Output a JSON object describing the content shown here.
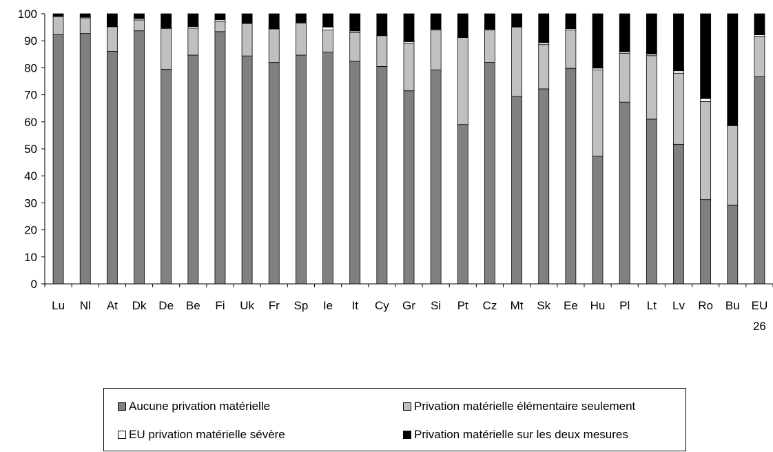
{
  "chart_data": {
    "type": "bar",
    "stacked": true,
    "categories": [
      "Lu",
      "Nl",
      "At",
      "Dk",
      "De",
      "Be",
      "Fi",
      "Uk",
      "Fr",
      "Sp",
      "Ie",
      "It",
      "Cy",
      "Gr",
      "Si",
      "Pt",
      "Cz",
      "Mt",
      "Sk",
      "Ee",
      "Hu",
      "Pl",
      "Lt",
      "Lv",
      "Ro",
      "Bu",
      "EU 26"
    ],
    "series": [
      {
        "name": "Aucune privation matérielle",
        "color": "#808080",
        "values": [
          92.3,
          92.7,
          86.1,
          93.7,
          79.5,
          84.7,
          93.4,
          84.4,
          82.0,
          84.7,
          85.8,
          82.4,
          80.5,
          71.5,
          79.2,
          59.0,
          82.0,
          69.4,
          72.2,
          79.8,
          47.3,
          67.3,
          61.0,
          51.7,
          31.2,
          29.1,
          76.7
        ]
      },
      {
        "name": "Privation matérielle élémentaire seulement",
        "color": "#c0c0c0",
        "values": [
          6.7,
          5.8,
          9.1,
          4.0,
          15.0,
          10.0,
          3.8,
          12.0,
          12.4,
          11.8,
          8.2,
          10.6,
          11.4,
          17.6,
          14.8,
          32.2,
          12.0,
          25.7,
          16.4,
          14.2,
          31.9,
          18.0,
          23.5,
          26.3,
          36.3,
          29.5,
          15.0
        ]
      },
      {
        "name": "EU privation matérielle sévère",
        "color": "#ffffff",
        "values": [
          0.2,
          0.3,
          0.2,
          0.5,
          0.3,
          0.6,
          0.6,
          0.2,
          0.1,
          0.3,
          1.1,
          0.6,
          0.2,
          0.6,
          0.3,
          0.0,
          0.3,
          0.2,
          0.7,
          0.5,
          0.7,
          0.6,
          0.6,
          0.9,
          1.1,
          0.2,
          0.5
        ]
      },
      {
        "name": "Privation matérielle sur les deux mesures",
        "color": "#000000",
        "values": [
          0.8,
          1.2,
          4.6,
          1.8,
          5.2,
          4.7,
          2.2,
          3.4,
          5.5,
          3.2,
          4.9,
          6.4,
          7.9,
          10.3,
          5.7,
          8.8,
          5.7,
          4.7,
          10.7,
          5.5,
          20.1,
          14.1,
          14.9,
          21.1,
          31.4,
          41.2,
          7.8
        ]
      }
    ],
    "ylim": [
      0,
      100
    ],
    "yticks": [
      0,
      10,
      20,
      30,
      40,
      50,
      60,
      70,
      80,
      90,
      100
    ],
    "legend_position": "bottom",
    "grid": false
  },
  "legend": {
    "items": [
      {
        "label": "Aucune privation matérielle",
        "color": "#808080"
      },
      {
        "label": "Privation matérielle élémentaire seulement",
        "color": "#c0c0c0"
      },
      {
        "label": "EU privation matérielle sévère",
        "color": "#ffffff"
      },
      {
        "label": "Privation matérielle sur les deux mesures",
        "color": "#000000"
      }
    ]
  }
}
